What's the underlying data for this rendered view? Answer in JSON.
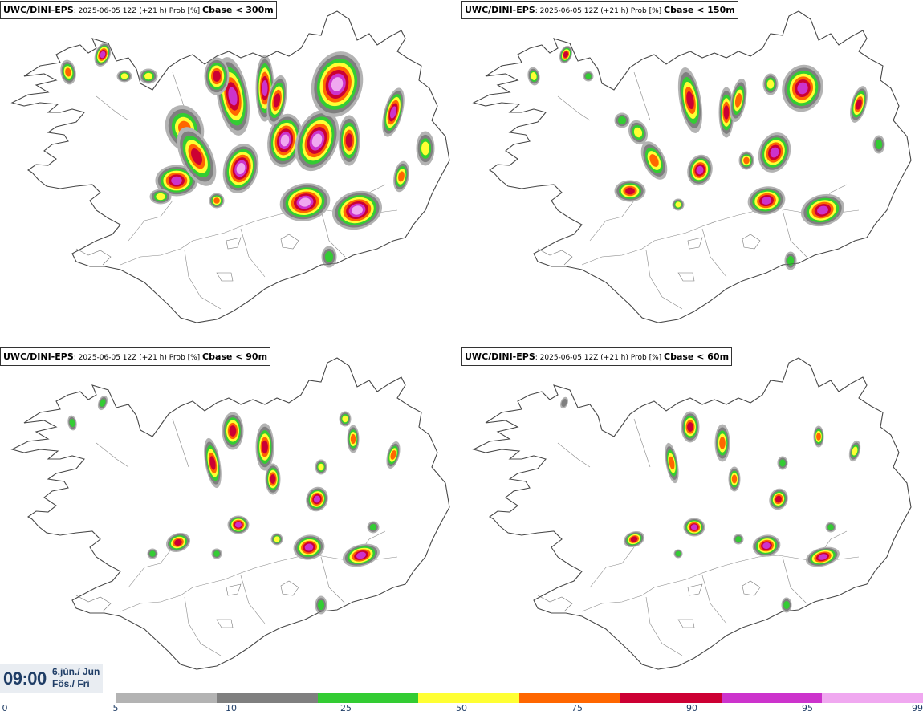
{
  "panels": [
    {
      "model": "UWC/DINI-EPS",
      "meta": ": 2025-06-05 12Z (+21 h) Prob [%] ",
      "threshold": "Cbase < 300m"
    },
    {
      "model": "UWC/DINI-EPS",
      "meta": ": 2025-06-05 12Z (+21 h) Prob [%] ",
      "threshold": "Cbase < 150m"
    },
    {
      "model": "UWC/DINI-EPS",
      "meta": ": 2025-06-05 12Z (+21 h) Prob [%] ",
      "threshold": "Cbase < 90m"
    },
    {
      "model": "UWC/DINI-EPS",
      "meta": ": 2025-06-05 12Z (+21 h) Prob [%] ",
      "threshold": "Cbase < 60m"
    }
  ],
  "time": {
    "clock": "09:00",
    "date_line1": "6.jún./ Jun",
    "date_line2": "Fös./ Fri"
  },
  "legend": {
    "ticks": [
      "0",
      "5",
      "10",
      "25",
      "50",
      "75",
      "90",
      "95",
      "99"
    ],
    "colors": [
      "#b3b3b3",
      "#7f7f7f",
      "#33cc33",
      "#ffff33",
      "#ff6600",
      "#cc0033",
      "#cc33cc",
      "#f0a8f0"
    ]
  }
}
